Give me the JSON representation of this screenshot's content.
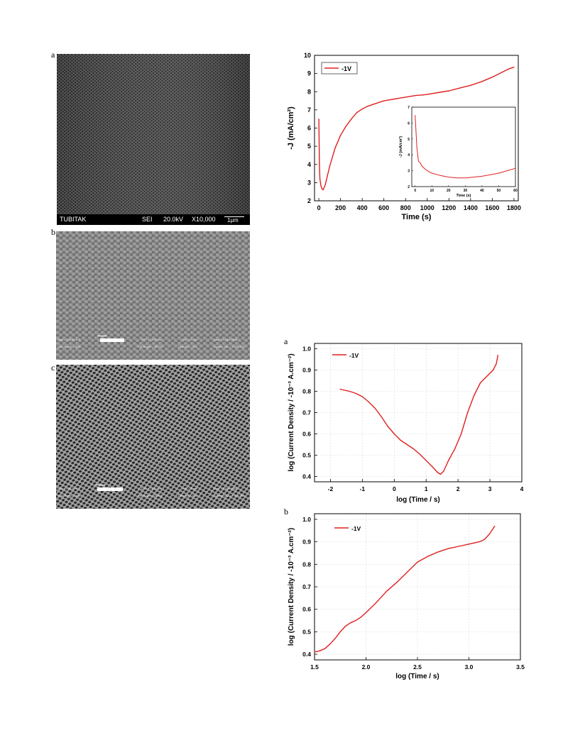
{
  "figure_left": {
    "panels": [
      {
        "letter": "a",
        "info_bar": {
          "org": "TUBITAK",
          "detector": "SEI",
          "voltage": "20.0kV",
          "mag": "X10,000",
          "scale": "1μm"
        }
      },
      {
        "letter": "b",
        "info_rows": [
          [
            "Mag = 103.80 K X",
            "EHT = 10.00 kV",
            "WD = 5 mm",
            "Date :13 Nov 2008"
          ],
          [
            "User Name = ANIL",
            "FIB Target = ZEISS ",
            "Detector = SE2",
            "System Vac = 7.00e-006"
          ]
        ]
      },
      {
        "letter": "c",
        "info_rows": [
          [
            "Mag = 100.00 K X",
            "EHT = 10.00 kV",
            "WD = 5 mm",
            "Date :13 Nov 2008"
          ],
          [
            "User Name = ANIL",
            "FIB Target = ZEISS ",
            "Detector = SE2",
            "System Vac = 7.00e-006"
          ]
        ]
      }
    ]
  },
  "chart_data": [
    {
      "type": "line",
      "series": [
        {
          "name": "-1V",
          "x": [
            0,
            5,
            10,
            20,
            30,
            40,
            60,
            80,
            100,
            150,
            200,
            250,
            300,
            350,
            400,
            450,
            500,
            550,
            600,
            650,
            700,
            750,
            800,
            850,
            900,
            950,
            1000,
            1100,
            1200,
            1300,
            1400,
            1500,
            1600,
            1700,
            1750,
            1800
          ],
          "y": [
            6.5,
            4.0,
            3.2,
            2.8,
            2.65,
            2.6,
            2.9,
            3.4,
            3.9,
            4.9,
            5.6,
            6.1,
            6.5,
            6.85,
            7.05,
            7.2,
            7.3,
            7.4,
            7.5,
            7.55,
            7.6,
            7.65,
            7.7,
            7.75,
            7.8,
            7.82,
            7.85,
            7.95,
            8.05,
            8.2,
            8.35,
            8.55,
            8.8,
            9.1,
            9.25,
            9.35
          ]
        }
      ],
      "xlabel": "Time (s)",
      "ylabel": "-J (mA/cm²)",
      "xlim": [
        -40,
        1840
      ],
      "ylim": [
        2,
        10
      ],
      "x_ticks": [
        0,
        200,
        400,
        600,
        800,
        1000,
        1200,
        1400,
        1600,
        1800
      ],
      "y_ticks": [
        2,
        3,
        4,
        5,
        6,
        7,
        8,
        9,
        10
      ],
      "legend": "top-left",
      "grid": false,
      "color": "#e02020",
      "inset": {
        "x": [
          0,
          1,
          2,
          3,
          4,
          6,
          8,
          10,
          15,
          20,
          25,
          30,
          35,
          40,
          45,
          50,
          55,
          60
        ],
        "y": [
          6.5,
          4.5,
          3.6,
          3.5,
          3.3,
          3.1,
          2.95,
          2.85,
          2.7,
          2.6,
          2.55,
          2.55,
          2.6,
          2.65,
          2.75,
          2.85,
          3.0,
          3.15
        ],
        "xlabel": "Time (s)",
        "ylabel": "-J (mA/cm²)",
        "xlim": [
          -2,
          60
        ],
        "ylim": [
          2,
          7
        ],
        "x_ticks": [
          0,
          10,
          20,
          30,
          40,
          50,
          60
        ],
        "y_ticks": [
          2,
          3,
          4,
          5,
          6,
          7
        ]
      }
    },
    {
      "type": "line",
      "letter": "a",
      "series": [
        {
          "name": "-1V",
          "x": [
            -1.7,
            -1.4,
            -1.2,
            -1.0,
            -0.8,
            -0.6,
            -0.4,
            -0.2,
            0.0,
            0.2,
            0.4,
            0.6,
            0.8,
            1.0,
            1.2,
            1.35,
            1.45,
            1.55,
            1.7,
            1.9,
            2.1,
            2.3,
            2.5,
            2.7,
            2.9,
            3.0,
            3.1,
            3.2,
            3.25
          ],
          "y": [
            0.81,
            0.8,
            0.79,
            0.775,
            0.75,
            0.72,
            0.68,
            0.635,
            0.6,
            0.57,
            0.55,
            0.53,
            0.505,
            0.475,
            0.445,
            0.42,
            0.41,
            0.425,
            0.475,
            0.53,
            0.6,
            0.7,
            0.78,
            0.84,
            0.87,
            0.885,
            0.9,
            0.93,
            0.97
          ]
        }
      ],
      "xlabel": "log (Time / s)",
      "ylabel": "log (Current Density / -10⁻³ A.cm⁻²)",
      "xlim": [
        -2.5,
        4
      ],
      "ylim": [
        0.375,
        1.025
      ],
      "x_ticks": [
        -2,
        -1,
        0,
        1,
        2,
        3,
        4
      ],
      "y_ticks": [
        0.4,
        0.5,
        0.6,
        0.7,
        0.8,
        0.9,
        1.0
      ],
      "legend": "top-left",
      "grid": true,
      "color": "#e02020"
    },
    {
      "type": "line",
      "letter": "b",
      "series": [
        {
          "name": "-1V",
          "x": [
            1.5,
            1.55,
            1.6,
            1.65,
            1.7,
            1.75,
            1.8,
            1.85,
            1.9,
            1.95,
            2.0,
            2.1,
            2.2,
            2.3,
            2.4,
            2.5,
            2.6,
            2.7,
            2.8,
            2.9,
            3.0,
            3.05,
            3.1,
            3.15,
            3.2,
            3.25
          ],
          "y": [
            0.41,
            0.415,
            0.425,
            0.445,
            0.47,
            0.5,
            0.525,
            0.54,
            0.55,
            0.565,
            0.585,
            0.63,
            0.68,
            0.72,
            0.765,
            0.81,
            0.835,
            0.855,
            0.87,
            0.88,
            0.89,
            0.895,
            0.9,
            0.91,
            0.935,
            0.97
          ]
        }
      ],
      "xlabel": "log (Time / s)",
      "ylabel": "log (Current Density / -10⁻³ A.cm⁻²)",
      "xlim": [
        1.5,
        3.5
      ],
      "ylim": [
        0.375,
        1.025
      ],
      "x_ticks": [
        1.5,
        2.0,
        2.5,
        3.0,
        3.5
      ],
      "y_ticks": [
        0.4,
        0.5,
        0.6,
        0.7,
        0.8,
        0.9,
        1.0
      ],
      "legend": "top-left",
      "grid": true,
      "color": "#e02020"
    }
  ]
}
